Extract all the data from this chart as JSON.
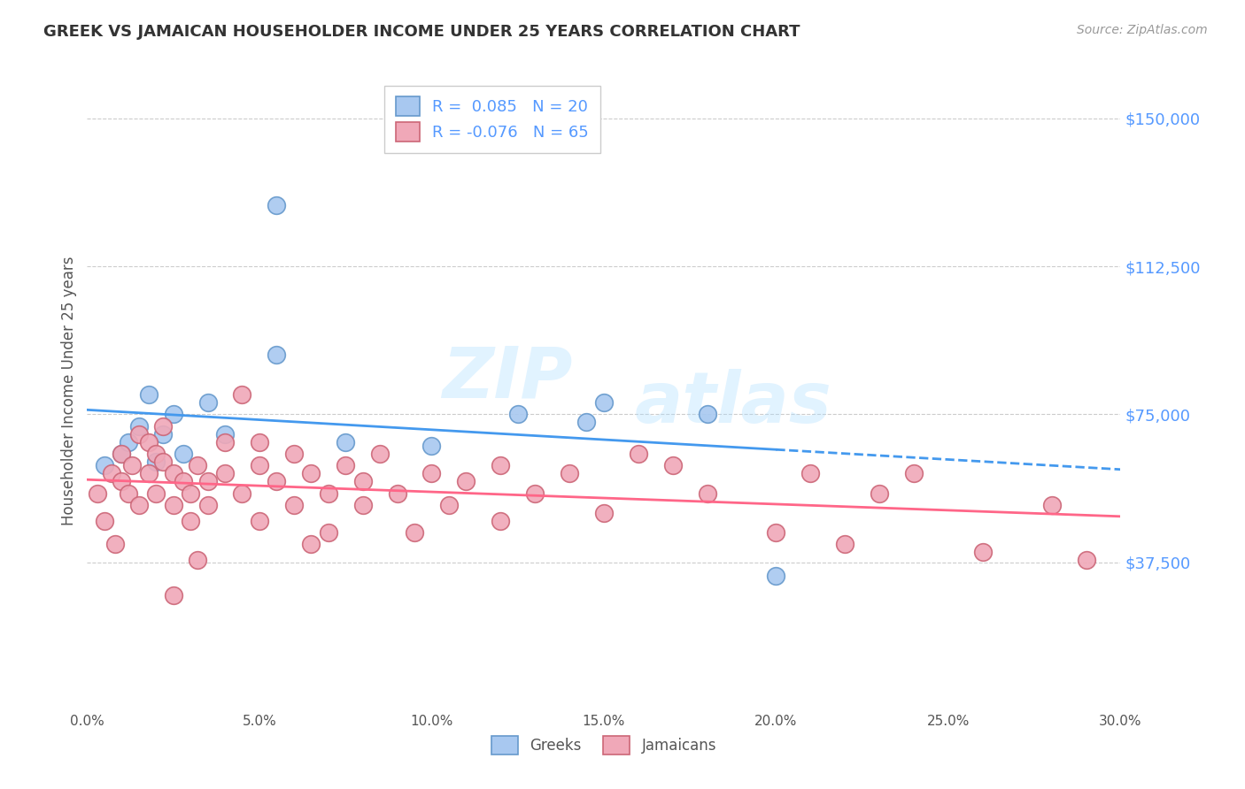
{
  "title": "GREEK VS JAMAICAN HOUSEHOLDER INCOME UNDER 25 YEARS CORRELATION CHART",
  "source": "Source: ZipAtlas.com",
  "ylabel": "Householder Income Under 25 years",
  "xlabel_ticks": [
    "0.0%",
    "5.0%",
    "10.0%",
    "15.0%",
    "20.0%",
    "25.0%",
    "30.0%"
  ],
  "xlabel_vals": [
    0.0,
    5.0,
    10.0,
    15.0,
    20.0,
    25.0,
    30.0
  ],
  "ytick_labels": [
    "$37,500",
    "$75,000",
    "$112,500",
    "$150,000"
  ],
  "ytick_vals": [
    37500,
    75000,
    112500,
    150000
  ],
  "xlim": [
    0.0,
    30.0
  ],
  "ylim": [
    0,
    162000
  ],
  "watermark_zip": "ZIP",
  "watermark_atlas": "atlas",
  "legend_greek_R": "0.085",
  "legend_greek_N": "20",
  "legend_jamaican_R": "-0.076",
  "legend_jamaican_N": "65",
  "greek_color": "#a8c8f0",
  "jamaican_color": "#f0a8b8",
  "greek_edge": "#6699cc",
  "jamaican_edge": "#cc6677",
  "trend_greek_color": "#4499ee",
  "trend_jamaican_color": "#ff6688",
  "background_color": "#ffffff",
  "grid_color": "#cccccc",
  "title_color": "#333333",
  "axis_label_color": "#555555",
  "source_color": "#999999",
  "right_tick_color": "#5599ff",
  "greek_scatter_x": [
    0.5,
    1.0,
    1.2,
    1.5,
    1.8,
    2.0,
    2.2,
    2.5,
    2.8,
    3.5,
    4.0,
    5.5,
    7.5,
    10.0,
    14.5,
    15.0,
    18.0,
    20.0,
    5.5,
    12.5
  ],
  "greek_scatter_y": [
    62000,
    65000,
    68000,
    72000,
    80000,
    63000,
    70000,
    75000,
    65000,
    78000,
    70000,
    90000,
    68000,
    67000,
    73000,
    78000,
    75000,
    34000,
    128000,
    75000
  ],
  "jamaican_scatter_x": [
    0.3,
    0.5,
    0.7,
    0.8,
    1.0,
    1.0,
    1.2,
    1.3,
    1.5,
    1.5,
    1.8,
    1.8,
    2.0,
    2.0,
    2.2,
    2.2,
    2.5,
    2.5,
    2.8,
    3.0,
    3.0,
    3.2,
    3.5,
    3.5,
    4.0,
    4.0,
    4.5,
    5.0,
    5.0,
    5.5,
    6.0,
    6.0,
    6.5,
    7.0,
    7.0,
    7.5,
    8.0,
    8.0,
    9.0,
    9.5,
    10.0,
    10.5,
    11.0,
    12.0,
    12.0,
    13.0,
    14.0,
    15.0,
    16.0,
    17.0,
    18.0,
    20.0,
    21.0,
    22.0,
    23.0,
    24.0,
    26.0,
    28.0,
    29.0,
    2.5,
    3.2,
    4.5,
    5.0,
    6.5,
    8.5
  ],
  "jamaican_scatter_y": [
    55000,
    48000,
    60000,
    42000,
    58000,
    65000,
    55000,
    62000,
    70000,
    52000,
    68000,
    60000,
    65000,
    55000,
    63000,
    72000,
    52000,
    60000,
    58000,
    55000,
    48000,
    62000,
    58000,
    52000,
    68000,
    60000,
    55000,
    62000,
    48000,
    58000,
    65000,
    52000,
    60000,
    55000,
    45000,
    62000,
    58000,
    52000,
    55000,
    45000,
    60000,
    52000,
    58000,
    62000,
    48000,
    55000,
    60000,
    50000,
    65000,
    62000,
    55000,
    45000,
    60000,
    42000,
    55000,
    60000,
    40000,
    52000,
    38000,
    29000,
    38000,
    80000,
    68000,
    42000,
    65000
  ]
}
